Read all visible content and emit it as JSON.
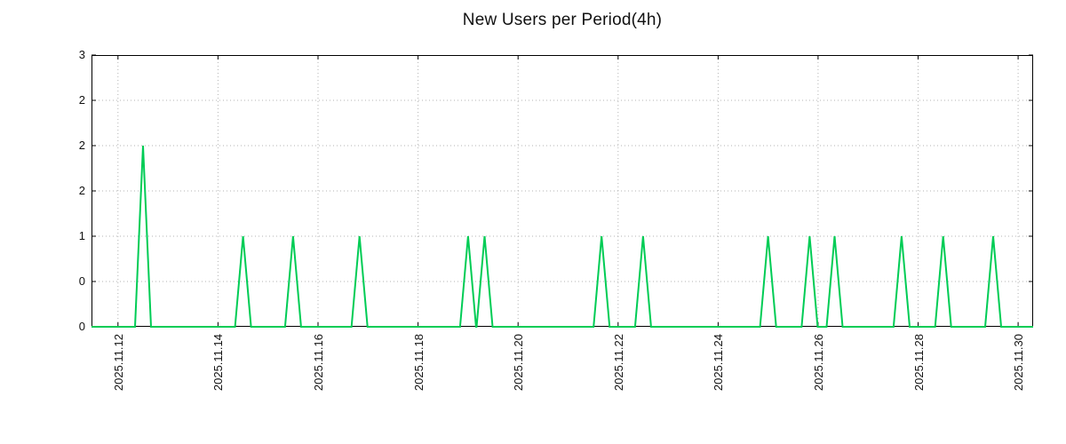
{
  "chart_data": {
    "type": "line",
    "title": "New Users per Period(4h)",
    "x_unit": "date",
    "y_unit": "new users",
    "legend": null,
    "grid": true,
    "colors": {
      "line": "#00cc55",
      "grid": "#b3b3b3",
      "axis": "#000000",
      "text": "#111111",
      "background": "#ffffff"
    },
    "x_axis": {
      "tick_labels": [
        "2025.11.12",
        "2025.11.14",
        "2025.11.16",
        "2025.11.18",
        "2025.11.20",
        "2025.11.22",
        "2025.11.24",
        "2025.11.26",
        "2025.11.28",
        "2025.11.30"
      ],
      "tick_days": [
        12,
        14,
        16,
        18,
        20,
        22,
        24,
        26,
        28,
        30
      ],
      "min_day": 11.47,
      "max_day": 30.3,
      "label_rotation_deg": 90
    },
    "y_axis": {
      "min": 0,
      "max": 3,
      "tick_values": [
        0,
        0.5,
        1,
        1.5,
        2,
        2.5,
        3
      ],
      "tick_labels": [
        "0",
        "0",
        "1",
        "2",
        "2",
        "2",
        "3"
      ]
    },
    "baseline_value": 0,
    "spike_half_width_days": 0.16,
    "spikes": [
      {
        "day": 12.5,
        "time": "2025-11-12 12:00",
        "value": 2
      },
      {
        "day": 14.5,
        "time": "2025-11-14 12:00",
        "value": 1
      },
      {
        "day": 15.5,
        "time": "2025-11-15 12:00",
        "value": 1
      },
      {
        "day": 16.83,
        "time": "2025-11-16 20:00",
        "value": 1
      },
      {
        "day": 19.0,
        "time": "2025-11-19 00:00",
        "value": 1
      },
      {
        "day": 19.33,
        "time": "2025-11-19 08:00",
        "value": 1
      },
      {
        "day": 21.67,
        "time": "2025-11-21 16:00",
        "value": 1
      },
      {
        "day": 22.5,
        "time": "2025-11-22 12:00",
        "value": 1
      },
      {
        "day": 25.0,
        "time": "2025-11-25 00:00",
        "value": 1
      },
      {
        "day": 25.83,
        "time": "2025-11-25 20:00",
        "value": 1
      },
      {
        "day": 26.33,
        "time": "2025-11-26 08:00",
        "value": 1
      },
      {
        "day": 27.67,
        "time": "2025-11-27 16:00",
        "value": 1
      },
      {
        "day": 28.5,
        "time": "2025-11-28 12:00",
        "value": 1
      },
      {
        "day": 29.5,
        "time": "2025-11-29 12:00",
        "value": 1
      }
    ]
  }
}
